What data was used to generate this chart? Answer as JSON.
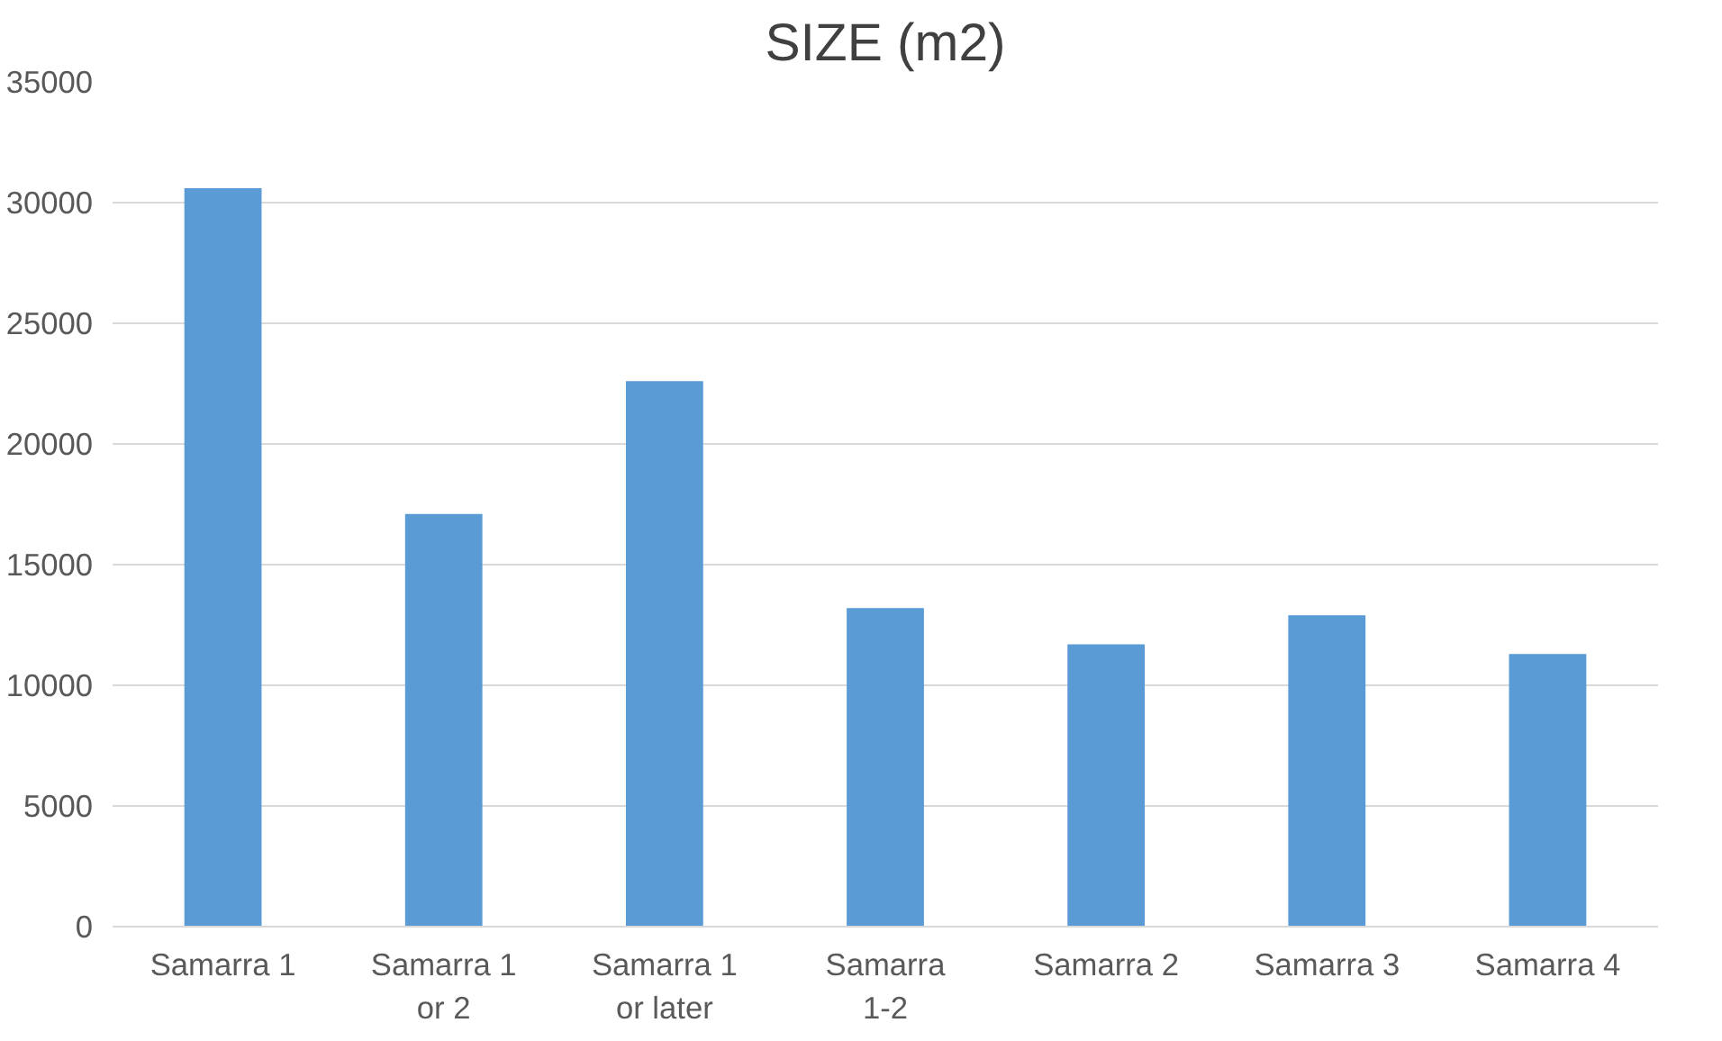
{
  "chart_data": {
    "type": "bar",
    "title": "SIZE (m2)",
    "categories": [
      "Samarra 1",
      "Samarra 1 or 2",
      "Samarra 1 or later",
      "Samarra 1-2",
      "Samarra 2",
      "Samarra 3",
      "Samarra 4"
    ],
    "values": [
      30600,
      17100,
      22600,
      13200,
      11700,
      12900,
      11300
    ],
    "color": "#5b9bd5",
    "ylim": [
      0,
      35000
    ],
    "yticks": [
      0,
      5000,
      10000,
      15000,
      20000,
      25000,
      30000,
      35000
    ],
    "grid": "y"
  }
}
